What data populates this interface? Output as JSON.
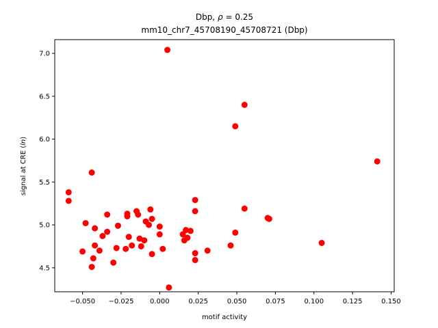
{
  "chart_data": {
    "type": "scatter",
    "title_line1_prefix": "Dbp, ",
    "title_line1_rho": "ρ",
    "title_line1_suffix": " = 0.25",
    "title_line2": "mm10_chr7_45708190_45708721 (Dbp)",
    "xlabel": "motif activity",
    "ylabel_prefix": "signal at CRE (",
    "ylabel_italic": "ln",
    "ylabel_suffix": ")",
    "xlim": [
      -0.068,
      0.152
    ],
    "ylim": [
      4.22,
      7.16
    ],
    "xticks": [
      -0.05,
      -0.025,
      0.0,
      0.025,
      0.05,
      0.075,
      0.1,
      0.125,
      0.15
    ],
    "xtick_labels": [
      "−0.050",
      "−0.025",
      "0.000",
      "0.025",
      "0.050",
      "0.075",
      "0.100",
      "0.125",
      "0.150"
    ],
    "yticks": [
      4.5,
      5.0,
      5.5,
      6.0,
      6.5,
      7.0
    ],
    "ytick_labels": [
      "4.5",
      "5.0",
      "5.5",
      "6.0",
      "6.5",
      "7.0"
    ],
    "marker_color": "#ff0000",
    "points": [
      {
        "x": 0.005,
        "y": 7.04
      },
      {
        "x": 0.055,
        "y": 6.4
      },
      {
        "x": 0.049,
        "y": 6.15
      },
      {
        "x": 0.141,
        "y": 5.74
      },
      {
        "x": -0.044,
        "y": 5.61
      },
      {
        "x": -0.059,
        "y": 5.38
      },
      {
        "x": -0.059,
        "y": 5.28
      },
      {
        "x": 0.023,
        "y": 5.29
      },
      {
        "x": 0.055,
        "y": 5.19
      },
      {
        "x": -0.006,
        "y": 5.18
      },
      {
        "x": 0.023,
        "y": 5.16
      },
      {
        "x": -0.015,
        "y": 5.16
      },
      {
        "x": -0.021,
        "y": 5.13
      },
      {
        "x": -0.014,
        "y": 5.12
      },
      {
        "x": -0.034,
        "y": 5.12
      },
      {
        "x": -0.021,
        "y": 5.1
      },
      {
        "x": 0.07,
        "y": 5.08
      },
      {
        "x": 0.071,
        "y": 5.07
      },
      {
        "x": -0.005,
        "y": 5.07
      },
      {
        "x": -0.009,
        "y": 5.04
      },
      {
        "x": -0.048,
        "y": 5.02
      },
      {
        "x": -0.007,
        "y": 5.0
      },
      {
        "x": -0.027,
        "y": 4.99
      },
      {
        "x": 0.0,
        "y": 4.98
      },
      {
        "x": -0.042,
        "y": 4.96
      },
      {
        "x": 0.017,
        "y": 4.94
      },
      {
        "x": 0.02,
        "y": 4.93
      },
      {
        "x": -0.034,
        "y": 4.92
      },
      {
        "x": 0.049,
        "y": 4.91
      },
      {
        "x": 0.015,
        "y": 4.89
      },
      {
        "x": 0.0,
        "y": 4.89
      },
      {
        "x": -0.037,
        "y": 4.87
      },
      {
        "x": -0.02,
        "y": 4.86
      },
      {
        "x": 0.018,
        "y": 4.85
      },
      {
        "x": -0.013,
        "y": 4.84
      },
      {
        "x": 0.016,
        "y": 4.82
      },
      {
        "x": -0.01,
        "y": 4.82
      },
      {
        "x": 0.105,
        "y": 4.79
      },
      {
        "x": -0.018,
        "y": 4.76
      },
      {
        "x": -0.042,
        "y": 4.76
      },
      {
        "x": 0.046,
        "y": 4.76
      },
      {
        "x": -0.012,
        "y": 4.75
      },
      {
        "x": -0.028,
        "y": 4.73
      },
      {
        "x": -0.022,
        "y": 4.72
      },
      {
        "x": 0.002,
        "y": 4.72
      },
      {
        "x": -0.039,
        "y": 4.7
      },
      {
        "x": -0.05,
        "y": 4.69
      },
      {
        "x": 0.031,
        "y": 4.7
      },
      {
        "x": 0.023,
        "y": 4.67
      },
      {
        "x": -0.005,
        "y": 4.66
      },
      {
        "x": -0.043,
        "y": 4.61
      },
      {
        "x": 0.023,
        "y": 4.59
      },
      {
        "x": -0.03,
        "y": 4.56
      },
      {
        "x": -0.044,
        "y": 4.51
      },
      {
        "x": 0.006,
        "y": 4.27
      }
    ]
  }
}
